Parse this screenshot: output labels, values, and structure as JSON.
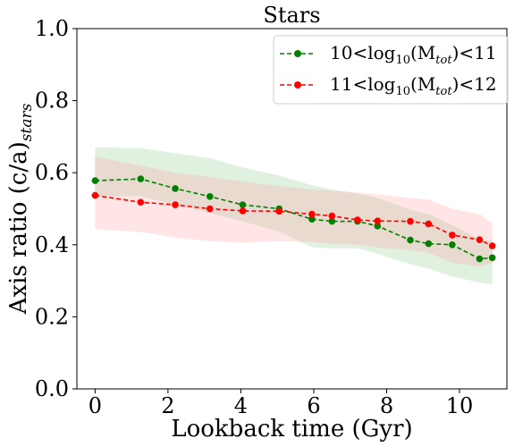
{
  "chart_data": {
    "type": "line",
    "title": "Stars",
    "xlabel": "Lookback time (Gyr)",
    "ylabel": {
      "main": "Axis ratio (c/a)",
      "subscript": "stars"
    },
    "xlim": [
      -0.5,
      11.3
    ],
    "ylim": [
      0.0,
      1.0
    ],
    "xticks": [
      0,
      2,
      4,
      6,
      8,
      10
    ],
    "yticks": [
      0.0,
      0.2,
      0.4,
      0.6,
      0.8,
      1.0
    ],
    "xtick_labels": [
      "0",
      "2",
      "4",
      "6",
      "8",
      "10"
    ],
    "ytick_labels": [
      "0.0",
      "0.2",
      "0.4",
      "0.6",
      "0.8",
      "1.0"
    ],
    "legend_position": "top-right",
    "series": [
      {
        "name": "10<log10(Mtot)<11",
        "label_parts": {
          "lead": "10<log",
          "sub1": "10",
          "mid": "(M",
          "sub2": "tot",
          "tail": ")<11"
        },
        "color": "#008000",
        "band_color": "#2ca02c",
        "x": [
          0.0,
          1.25,
          2.2,
          3.15,
          4.05,
          5.05,
          5.95,
          6.5,
          7.2,
          7.75,
          8.65,
          9.15,
          9.8,
          10.55,
          10.9
        ],
        "y": [
          0.578,
          0.583,
          0.556,
          0.534,
          0.511,
          0.5,
          0.471,
          0.465,
          0.465,
          0.452,
          0.413,
          0.403,
          0.4,
          0.361,
          0.364
        ],
        "upper": [
          0.671,
          0.668,
          0.654,
          0.64,
          0.615,
          0.592,
          0.565,
          0.553,
          0.542,
          0.53,
          0.497,
          0.485,
          0.455,
          0.415,
          0.41
        ],
        "lower": [
          0.535,
          0.535,
          0.511,
          0.488,
          0.465,
          0.437,
          0.393,
          0.39,
          0.39,
          0.375,
          0.346,
          0.334,
          0.312,
          0.295,
          0.29
        ]
      },
      {
        "name": "11<log10(Mtot)<12",
        "label_parts": {
          "lead": "11<log",
          "sub1": "10",
          "mid": "(M",
          "sub2": "tot",
          "tail": ")<12"
        },
        "color": "#ff0000",
        "band_color": "#ff9999",
        "x": [
          0.0,
          1.25,
          2.2,
          3.15,
          4.05,
          5.05,
          5.95,
          6.5,
          7.2,
          7.75,
          8.65,
          9.15,
          9.8,
          10.55,
          10.9
        ],
        "y": [
          0.537,
          0.518,
          0.511,
          0.5,
          0.494,
          0.493,
          0.485,
          0.48,
          0.469,
          0.466,
          0.465,
          0.458,
          0.427,
          0.414,
          0.397
        ],
        "upper": [
          0.645,
          0.62,
          0.6,
          0.588,
          0.575,
          0.563,
          0.553,
          0.55,
          0.545,
          0.54,
          0.53,
          0.525,
          0.5,
          0.485,
          0.46
        ],
        "lower": [
          0.443,
          0.436,
          0.42,
          0.41,
          0.406,
          0.41,
          0.408,
          0.403,
          0.4,
          0.392,
          0.385,
          0.378,
          0.35,
          0.34,
          0.35
        ]
      }
    ]
  }
}
